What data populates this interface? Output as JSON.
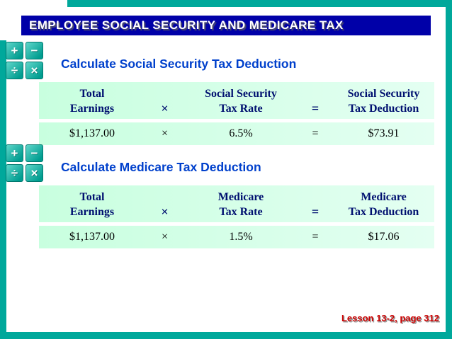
{
  "slide": {
    "title": "EMPLOYEE SOCIAL SECURITY AND MEDICARE TAX",
    "footer": "Lesson 13-2, page 312"
  },
  "colors": {
    "frame_teal": "#00A89B",
    "title_bar_blue": "#0000A8",
    "section_heading_blue": "#0040CC",
    "table_green": "#CCFFE0",
    "table_header_navy": "#001070",
    "footer_red": "#CC0000"
  },
  "calc_icon": {
    "plus": "+",
    "minus": "−",
    "divide": "÷",
    "multiply": "×"
  },
  "sections": [
    {
      "heading": "Calculate Social Security Tax Deduction",
      "headers": {
        "c1l1": "Total",
        "c1l2": "Earnings",
        "op_times": "×",
        "c2l1": "Social Security",
        "c2l2": "Tax Rate",
        "op_equals": "=",
        "c3l1": "Social Security",
        "c3l2": "Tax Deduction"
      },
      "values": {
        "earnings": "$1,137.00",
        "times": "×",
        "rate": "6.5%",
        "equals": "=",
        "deduction": "$73.91"
      }
    },
    {
      "heading": "Calculate Medicare Tax Deduction",
      "headers": {
        "c1l1": "Total",
        "c1l2": "Earnings",
        "op_times": "×",
        "c2l1": "Medicare",
        "c2l2": "Tax Rate",
        "op_equals": "=",
        "c3l1": "Medicare",
        "c3l2": "Tax Deduction"
      },
      "values": {
        "earnings": "$1,137.00",
        "times": "×",
        "rate": "1.5%",
        "equals": "=",
        "deduction": "$17.06"
      }
    }
  ]
}
